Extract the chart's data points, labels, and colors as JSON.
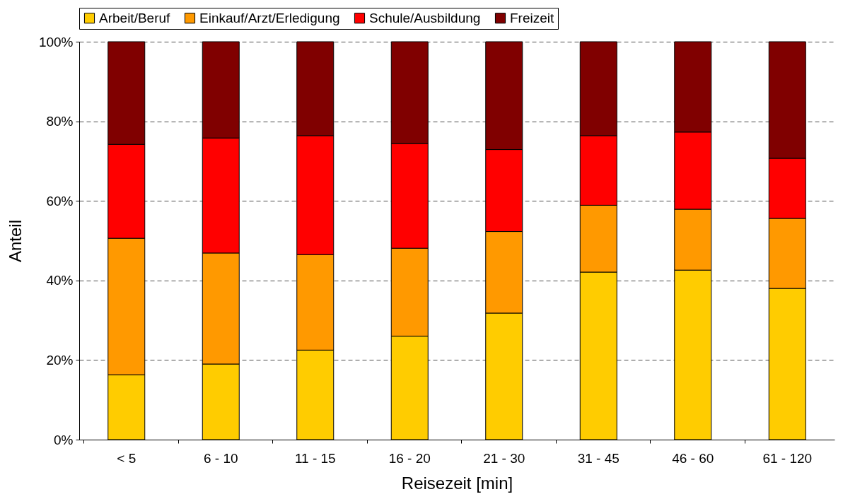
{
  "chart_data": {
    "type": "bar",
    "stacked": true,
    "xlabel": "Reisezeit [min]",
    "ylabel": "Anteil",
    "categories": [
      "< 5",
      "6 - 10",
      "11 - 15",
      "16 - 20",
      "21 - 30",
      "31 - 45",
      "46 - 60",
      "61 - 120"
    ],
    "series": [
      {
        "name": "Arbeit/Beruf",
        "color": "#ffcc00",
        "values": [
          16.3,
          19.0,
          22.5,
          26.0,
          31.8,
          42.1,
          42.6,
          38.0
        ]
      },
      {
        "name": "Einkauf/Arzt/Erledigung",
        "color": "#ff9900",
        "values": [
          34.3,
          27.9,
          24.0,
          22.1,
          20.5,
          16.8,
          15.3,
          17.6
        ]
      },
      {
        "name": "Schule/Ausbildung",
        "color": "#ff0000",
        "values": [
          23.6,
          28.9,
          29.9,
          26.3,
          20.6,
          17.5,
          19.4,
          15.1
        ]
      },
      {
        "name": "Freizeit",
        "color": "#800000",
        "values": [
          25.8,
          24.2,
          23.6,
          25.6,
          27.1,
          23.6,
          22.7,
          29.3
        ]
      }
    ],
    "ylim": [
      0,
      100
    ],
    "yticks": [
      {
        "value": 0,
        "label": "0%"
      },
      {
        "value": 20,
        "label": "20%"
      },
      {
        "value": 40,
        "label": "40%"
      },
      {
        "value": 60,
        "label": "60%"
      },
      {
        "value": 80,
        "label": "80%"
      },
      {
        "value": 100,
        "label": "100%"
      }
    ],
    "grid": "y",
    "legend": "top"
  }
}
